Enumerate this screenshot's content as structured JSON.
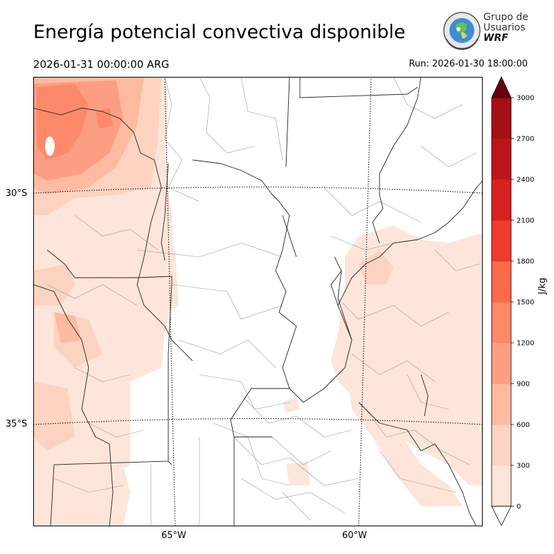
{
  "header": {
    "title": "Energía potencial convectiva disponible",
    "valid_time": "2026-01-31 00:00:00 ARG",
    "run_time": "Run: 2026-01-30 18:00:00"
  },
  "logo": {
    "line1": "Grupo de",
    "line2": "Usuarios",
    "line3": "WRF"
  },
  "map": {
    "latitude_labels": [
      "30°S",
      "35°S"
    ],
    "longitude_labels": [
      "65°W",
      "60°W"
    ]
  },
  "colorbar": {
    "unit": "J/kg",
    "ticks": [
      "0",
      "300",
      "600",
      "900",
      "1200",
      "1500",
      "1800",
      "2100",
      "2400",
      "2700",
      "3000"
    ],
    "colors": [
      "#fee5d9",
      "#fcd3c1",
      "#fcbba1",
      "#fc9e83",
      "#fc8a6a",
      "#fb6a4a",
      "#ef3b2c",
      "#d52221",
      "#bc141a",
      "#a50f15",
      "#7b0a0f",
      "#67000d"
    ]
  }
}
